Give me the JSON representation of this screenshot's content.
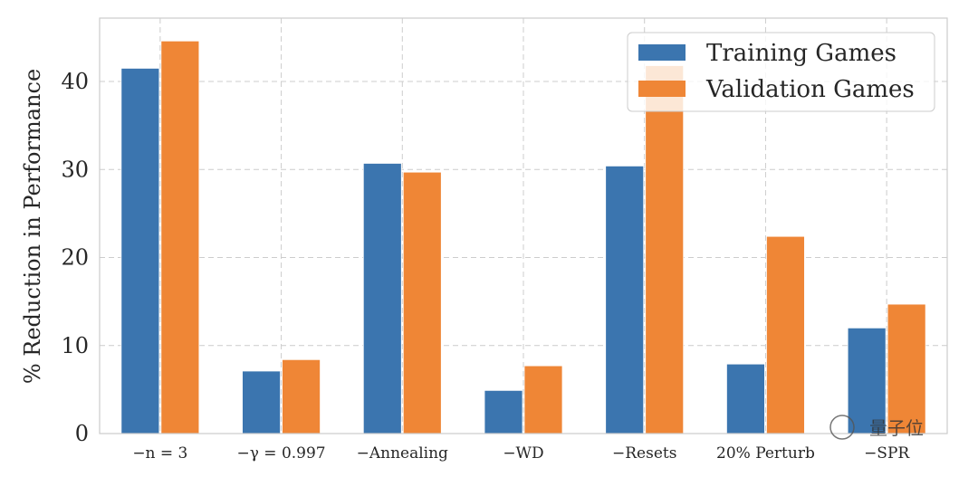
{
  "chart_data": {
    "type": "bar",
    "categories": [
      "−n = 3",
      "−γ = 0.997",
      "−Annealing",
      "−WD",
      "−Resets",
      "20% Perturb",
      "−SPR"
    ],
    "series": [
      {
        "name": "Training Games",
        "color": "#3b75af",
        "values": [
          41.5,
          7.1,
          30.7,
          4.9,
          30.4,
          7.9,
          12.0
        ]
      },
      {
        "name": "Validation Games",
        "color": "#ef8636",
        "values": [
          44.6,
          8.4,
          29.7,
          7.7,
          41.8,
          22.4,
          14.7
        ]
      }
    ],
    "title": "",
    "xlabel": "",
    "ylabel": "% Reduction in Performance",
    "ylim": [
      0,
      47
    ],
    "yticks": [
      0,
      10,
      20,
      30,
      40
    ],
    "grid": true,
    "legend": "top-right"
  },
  "watermark": "量子位"
}
